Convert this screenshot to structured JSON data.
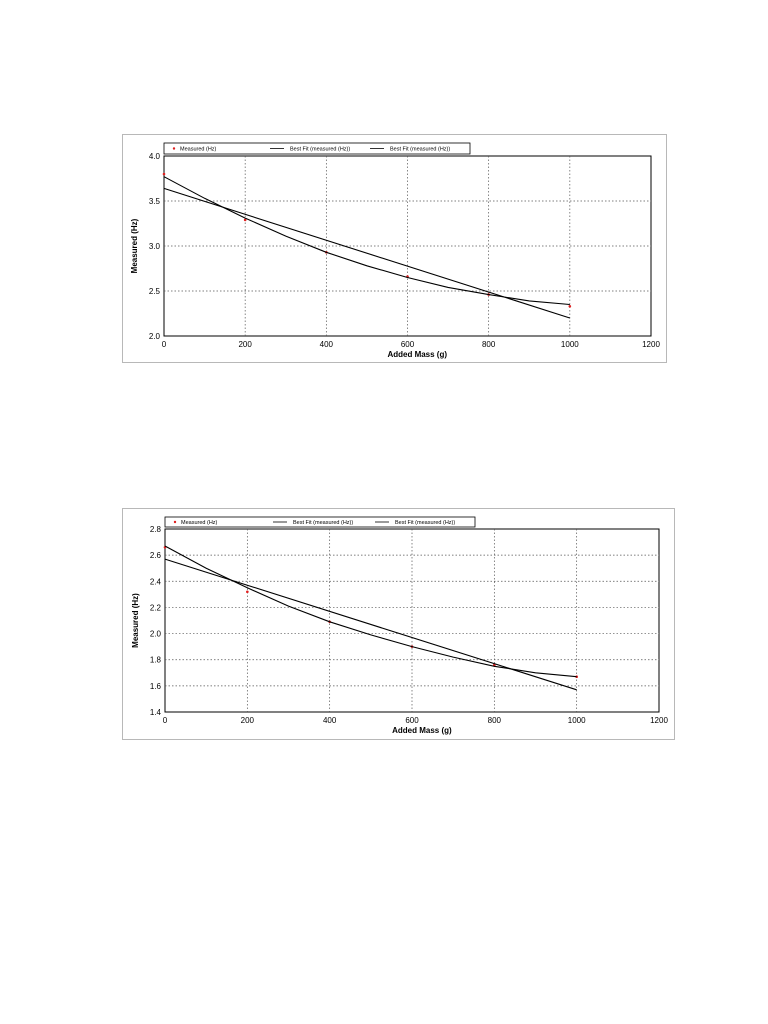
{
  "chart_data": [
    {
      "type": "scatter",
      "title": "",
      "xlabel": "Added Mass (g)",
      "ylabel": "Measured (Hz)",
      "xlim": [
        0,
        1200
      ],
      "ylim": [
        2.0,
        4.0
      ],
      "xticks": [
        0,
        200,
        400,
        600,
        800,
        1000,
        1200
      ],
      "yticks": [
        2.0,
        2.5,
        3.0,
        3.5,
        4.0
      ],
      "ytick_labels": [
        "2.0",
        "2.5",
        "3.0",
        "3.5",
        "4.0"
      ],
      "grid": true,
      "legend_position": "top",
      "legend": [
        "Measured (Hz)",
        "Best Fit (measured (Hz))",
        "Best Fit (measured (Hz))"
      ],
      "series": [
        {
          "name": "Measured (Hz)",
          "kind": "points",
          "color": "#e02020",
          "x": [
            0,
            200,
            400,
            600,
            800,
            1000
          ],
          "y": [
            3.8,
            3.29,
            2.93,
            2.66,
            2.46,
            2.33
          ]
        },
        {
          "name": "Best Fit (measured (Hz))",
          "kind": "curve",
          "color": "#000000",
          "x": [
            0,
            100,
            200,
            300,
            400,
            500,
            600,
            700,
            800,
            900,
            1000
          ],
          "y": [
            3.77,
            3.53,
            3.31,
            3.11,
            2.93,
            2.78,
            2.65,
            2.54,
            2.46,
            2.39,
            2.35
          ]
        },
        {
          "name": "Best Fit (measured (Hz))",
          "kind": "line",
          "color": "#000000",
          "x": [
            0,
            1000
          ],
          "y": [
            3.64,
            2.2
          ]
        }
      ]
    },
    {
      "type": "scatter",
      "title": "",
      "xlabel": "Added Mass (g)",
      "ylabel": "Measured (Hz)",
      "xlim": [
        0,
        1200
      ],
      "ylim": [
        1.4,
        2.8
      ],
      "xticks": [
        0,
        200,
        400,
        600,
        800,
        1000,
        1200
      ],
      "yticks": [
        1.4,
        1.6,
        1.8,
        2.0,
        2.2,
        2.4,
        2.6,
        2.8
      ],
      "ytick_labels": [
        "1.4",
        "1.6",
        "1.8",
        "2.0",
        "2.2",
        "2.4",
        "2.6",
        "2.8"
      ],
      "grid": true,
      "legend_position": "top",
      "legend": [
        "Measured (Hz)",
        "Best Fit (measured (Hz))",
        "Best Fit (measured (Hz))"
      ],
      "series": [
        {
          "name": "Measured (Hz)",
          "kind": "points",
          "color": "#e02020",
          "x": [
            0,
            200,
            400,
            600,
            800,
            1000
          ],
          "y": [
            2.66,
            2.32,
            2.09,
            1.9,
            1.76,
            1.67
          ]
        },
        {
          "name": "Best Fit (measured (Hz))",
          "kind": "curve",
          "color": "#000000",
          "x": [
            0,
            100,
            200,
            300,
            400,
            500,
            600,
            700,
            800,
            900,
            1000
          ],
          "y": [
            2.67,
            2.5,
            2.35,
            2.21,
            2.09,
            1.99,
            1.9,
            1.82,
            1.75,
            1.7,
            1.67
          ]
        },
        {
          "name": "Best Fit (measured (Hz))",
          "kind": "line",
          "color": "#000000",
          "x": [
            0,
            1000
          ],
          "y": [
            2.57,
            1.57
          ]
        }
      ]
    }
  ]
}
